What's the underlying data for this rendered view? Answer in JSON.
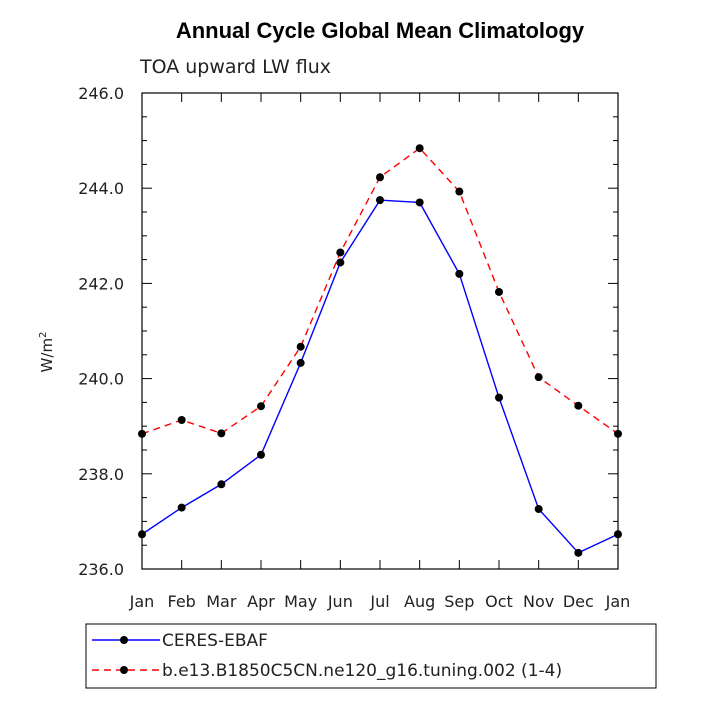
{
  "chart_data": {
    "type": "line",
    "title": "Annual Cycle Global Mean Climatology",
    "subtitle": "TOA upward LW flux",
    "ylabel": "W/m",
    "ylabel_sup": "2",
    "xlabel": "",
    "ylim": [
      236.0,
      246.0
    ],
    "yticks": [
      "236.0",
      "238.0",
      "240.0",
      "242.0",
      "244.0",
      "246.0"
    ],
    "categories": [
      "Jan",
      "Feb",
      "Mar",
      "Apr",
      "May",
      "Jun",
      "Jul",
      "Aug",
      "Sep",
      "Oct",
      "Nov",
      "Dec",
      "Jan"
    ],
    "grid": false,
    "legend_position": "bottom-left",
    "series": [
      {
        "name": "CERES-EBAF",
        "color": "#0000ff",
        "dash": "solid",
        "values": [
          236.73,
          237.29,
          237.78,
          238.4,
          240.33,
          242.44,
          243.75,
          243.7,
          242.2,
          239.6,
          237.26,
          236.34,
          236.73
        ]
      },
      {
        "name": "b.e13.B1850C5CN.ne120_g16.tuning.002 (1-4)",
        "color": "#ff0000",
        "dash": "dashed",
        "values": [
          238.84,
          239.13,
          238.85,
          239.42,
          240.67,
          242.65,
          244.23,
          244.84,
          243.93,
          241.82,
          240.03,
          239.43,
          238.84
        ]
      }
    ]
  }
}
